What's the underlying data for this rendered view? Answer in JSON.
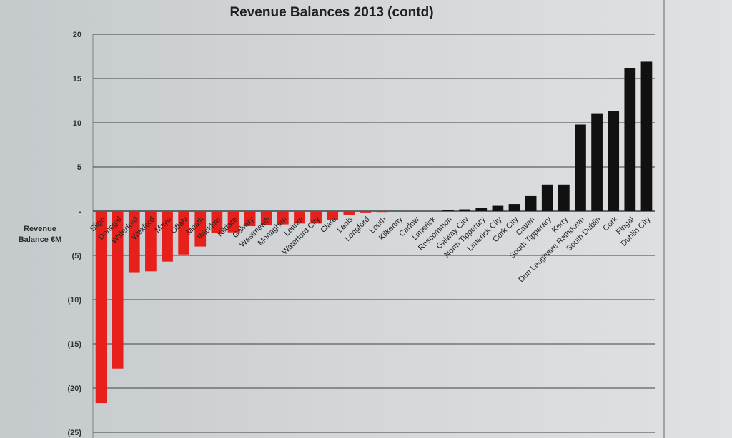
{
  "chart_data": {
    "type": "bar",
    "title": "Revenue Balances 2013 (contd)",
    "ylabel_line1": "Revenue",
    "ylabel_line2": "Balance €M",
    "ylim": [
      -25,
      20
    ],
    "yticks": [
      20,
      15,
      10,
      5,
      0,
      -5,
      -10,
      -15,
      -20,
      -25
    ],
    "ytick_labels": [
      "20",
      "15",
      "10",
      "5",
      "-",
      "(5)",
      "(10)",
      "(15)",
      "(20)",
      "(25)"
    ],
    "grid": true,
    "negative_color": "#e8201c",
    "positive_color": "#111111",
    "categories": [
      "Sligo",
      "Donegal",
      "Waterford",
      "Wexford",
      "Mayo",
      "Offaly",
      "Meath",
      "Wicklow",
      "Kildare",
      "Galway",
      "Westmeath",
      "Monaghan",
      "Leitrim",
      "Waterford City",
      "Clare",
      "Laois",
      "Longford",
      "Louth",
      "Kilkenny",
      "Carlow",
      "Limerick",
      "Roscommon",
      "Galway City",
      "North Tipperary",
      "Limerick City",
      "Cork City",
      "Cavan",
      "South Tipperary",
      "Kerry",
      "Dun Laoghaire Rathdown",
      "South Dublin",
      "Cork",
      "Fingal",
      "Dublin City"
    ],
    "values": [
      -21.7,
      -17.8,
      -6.9,
      -6.8,
      -5.7,
      -4.9,
      -4.0,
      -2.5,
      -2.4,
      -1.7,
      -1.6,
      -1.5,
      -1.4,
      -1.4,
      -1.0,
      -0.4,
      -0.15,
      -0.1,
      0,
      0,
      0,
      0.15,
      0.2,
      0.4,
      0.6,
      0.8,
      1.7,
      3.0,
      3.0,
      9.8,
      11.0,
      11.3,
      16.2,
      16.9
    ]
  }
}
